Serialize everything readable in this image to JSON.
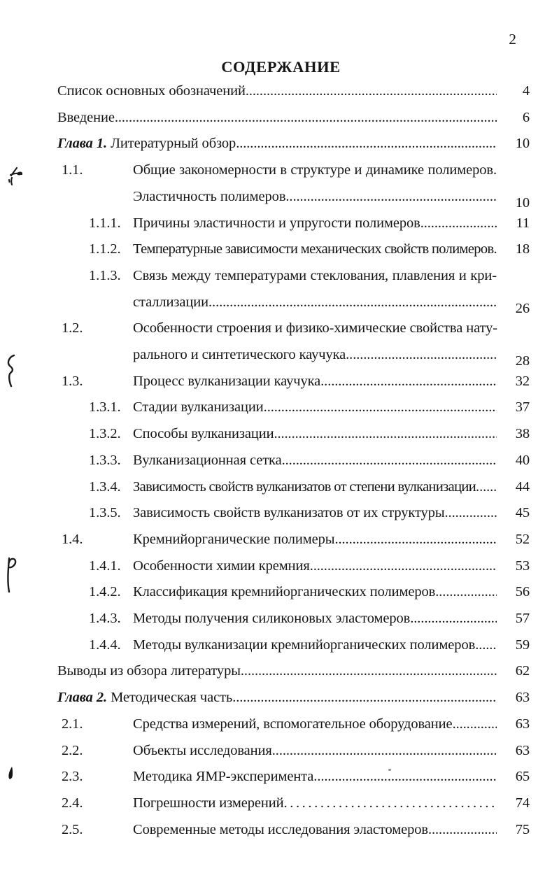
{
  "page_background": "#ffffff",
  "ink_color": "#161616",
  "page": {
    "number": "2",
    "title": "СОДЕРЖАНИЕ"
  },
  "toc": {
    "leader_char": ".",
    "entries": [
      {
        "level": 0,
        "text": "Список основных обозначений",
        "page": "4"
      },
      {
        "level": 0,
        "text": "Введение",
        "page": "6"
      },
      {
        "level": 0,
        "prefix": "Глава 1.",
        "text": "Литературный обзор",
        "page": "10"
      },
      {
        "level": 1,
        "num": "1.1.",
        "lines": [
          "Общие закономерности в структуре и динамике полимеров.",
          "Эластичность полимеров"
        ],
        "page": "10",
        "page_low": true
      },
      {
        "level": 2,
        "num": "1.1.1.",
        "text": "Причины эластичности и упругости полимеров",
        "page": "11"
      },
      {
        "level": 2,
        "num": "1.1.2.",
        "text": "Температурные зависимости механических свойств полимеров",
        "page": "18",
        "compact": true
      },
      {
        "level": 2,
        "num": "1.1.3.",
        "lines": [
          "Связь между температурами стеклования, плавления и кри-",
          "сталлизации"
        ],
        "page": "26",
        "page_low": true
      },
      {
        "level": 1,
        "num": "1.2.",
        "lines": [
          "Особенности строения и физико-химические свойства нату-",
          "рального и синтетического каучука"
        ],
        "page": "28",
        "page_low": true
      },
      {
        "level": 1,
        "num": "1.3.",
        "text": "Процесс вулканизации каучука",
        "page": "32"
      },
      {
        "level": 2,
        "num": "1.3.1.",
        "text": "Стадии вулканизации",
        "page": "37"
      },
      {
        "level": 2,
        "num": "1.3.2.",
        "text": "Способы вулканизации",
        "page": "38"
      },
      {
        "level": 2,
        "num": "1.3.3.",
        "text": "Вулканизационная сетка",
        "page": "40"
      },
      {
        "level": 2,
        "num": "1.3.4.",
        "text": "Зависимость свойств вулканизатов от степени вулканизации",
        "page": "44",
        "compact": true
      },
      {
        "level": 2,
        "num": "1.3.5.",
        "text": "Зависимость свойств вулканизатов от их структуры",
        "page": "45"
      },
      {
        "level": 1,
        "num": "1.4.",
        "text": "Кремнийорганические полимеры",
        "page": "52"
      },
      {
        "level": 2,
        "num": "1.4.1.",
        "text": "Особенности химии кремния",
        "page": "53"
      },
      {
        "level": 2,
        "num": "1.4.2.",
        "text": "Классификация кремнийорганических полимеров",
        "page": "56"
      },
      {
        "level": 2,
        "num": "1.4.3.",
        "text": "Методы получения силиконовых эластомеров",
        "page": "57"
      },
      {
        "level": 2,
        "num": "1.4.4.",
        "text": "Методы вулканизации кремнийорганических полимеров",
        "page": "59"
      },
      {
        "level": 0,
        "text": "Выводы из обзора литературы",
        "page": "62"
      },
      {
        "level": 0,
        "prefix": "Глава 2.",
        "text": "Методическая часть",
        "page": "63"
      },
      {
        "level": 1,
        "num": "2.1.",
        "text": "Средства измерений, вспомогательное оборудование",
        "page": "63"
      },
      {
        "level": 1,
        "num": "2.2.",
        "text": "Объекты исследования",
        "page": "63"
      },
      {
        "level": 1,
        "num": "2.3.",
        "text": "Методика ЯМР-эксперимента",
        "page": "65"
      },
      {
        "level": 1,
        "num": "2.4.",
        "text": "Погрешности измерений",
        "page": "74",
        "leader": "ellipsis"
      },
      {
        "level": 1,
        "num": "2.5.",
        "text": "Современные методы исследования эластомеров",
        "page": "75"
      }
    ]
  }
}
